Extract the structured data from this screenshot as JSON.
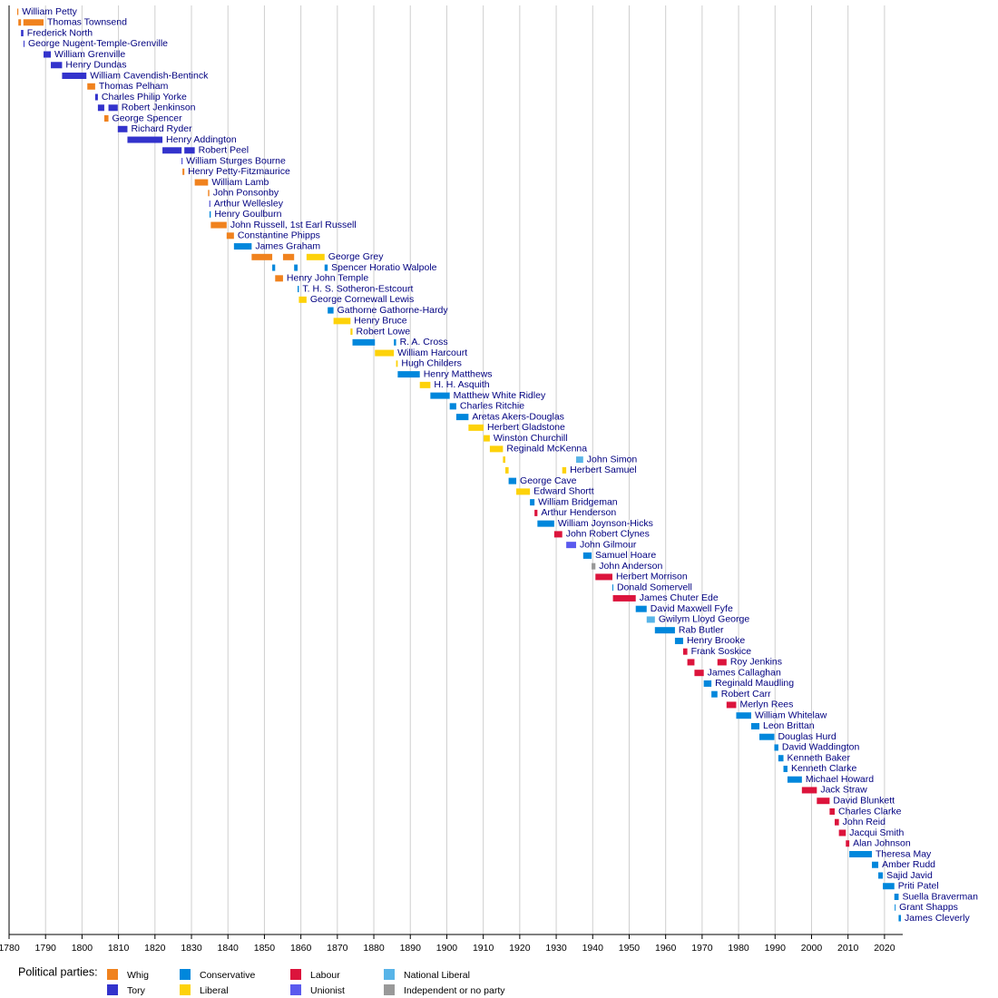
{
  "chart_data": {
    "type": "timeline",
    "xlim": [
      1780,
      2025
    ],
    "xticks": [
      1780,
      1790,
      1800,
      1810,
      1820,
      1830,
      1840,
      1850,
      1860,
      1870,
      1880,
      1890,
      1900,
      1910,
      1920,
      1930,
      1940,
      1950,
      1960,
      1970,
      1980,
      1990,
      2000,
      2010,
      2020
    ],
    "grid": true,
    "legend_title": "Political parties:",
    "parties": [
      {
        "name": "Whig",
        "color": "#f0821e"
      },
      {
        "name": "Tory",
        "color": "#3333cc"
      },
      {
        "name": "Conservative",
        "color": "#0087dc"
      },
      {
        "name": "Liberal",
        "color": "#fdd20a"
      },
      {
        "name": "Labour",
        "color": "#dc143c"
      },
      {
        "name": "Unionist",
        "color": "#5a5aee"
      },
      {
        "name": "National Liberal",
        "color": "#58b4e8"
      },
      {
        "name": "Independent or no party",
        "color": "#999999"
      }
    ],
    "rows": [
      {
        "name": "William Petty",
        "terms": [
          {
            "start": 1782.23,
            "end": 1782.54,
            "party": 0
          }
        ]
      },
      {
        "name": "Thomas Townsend",
        "terms": [
          {
            "start": 1782.54,
            "end": 1783.28,
            "party": 0
          },
          {
            "start": 1783.92,
            "end": 1789.45,
            "party": 0
          }
        ]
      },
      {
        "name": "Frederick North",
        "terms": [
          {
            "start": 1783.28,
            "end": 1783.92,
            "party": 1
          }
        ]
      },
      {
        "name": "George Nugent-Temple-Grenville",
        "terms": [
          {
            "start": 1783.97,
            "end": 1783.99,
            "party": 1
          }
        ]
      },
      {
        "name": "William Grenville",
        "terms": [
          {
            "start": 1789.45,
            "end": 1791.45,
            "party": 1
          }
        ]
      },
      {
        "name": "Henry Dundas",
        "terms": [
          {
            "start": 1791.45,
            "end": 1794.53,
            "party": 1
          }
        ]
      },
      {
        "name": "William Cavendish-Bentinck",
        "terms": [
          {
            "start": 1794.53,
            "end": 1801.2,
            "party": 1
          }
        ]
      },
      {
        "name": "Thomas Pelham",
        "terms": [
          {
            "start": 1801.45,
            "end": 1803.6,
            "party": 0
          }
        ]
      },
      {
        "name": "Charles Philip Yorke",
        "terms": [
          {
            "start": 1803.6,
            "end": 1804.35,
            "party": 1
          }
        ]
      },
      {
        "name": "Robert Jenkinson",
        "terms": [
          {
            "start": 1804.35,
            "end": 1806.1,
            "party": 1
          },
          {
            "start": 1807.25,
            "end": 1809.8,
            "party": 1
          }
        ]
      },
      {
        "name": "George Spencer",
        "terms": [
          {
            "start": 1806.1,
            "end": 1807.25,
            "party": 0
          }
        ]
      },
      {
        "name": "Richard Ryder",
        "terms": [
          {
            "start": 1809.8,
            "end": 1812.45,
            "party": 1
          }
        ]
      },
      {
        "name": "Henry Addington",
        "terms": [
          {
            "start": 1812.45,
            "end": 1822.05,
            "party": 1
          }
        ]
      },
      {
        "name": "Robert Peel",
        "terms": [
          {
            "start": 1822.05,
            "end": 1827.3,
            "party": 1
          },
          {
            "start": 1828.05,
            "end": 1830.9,
            "party": 1
          }
        ]
      },
      {
        "name": "William Sturges Bourne",
        "terms": [
          {
            "start": 1827.3,
            "end": 1827.55,
            "party": 1
          }
        ]
      },
      {
        "name": "Henry Petty-Fitzmaurice",
        "terms": [
          {
            "start": 1827.55,
            "end": 1828.05,
            "party": 0
          }
        ]
      },
      {
        "name": "William Lamb",
        "terms": [
          {
            "start": 1830.9,
            "end": 1834.55,
            "party": 0
          }
        ]
      },
      {
        "name": "John Ponsonby",
        "terms": [
          {
            "start": 1834.55,
            "end": 1834.9,
            "party": 0
          }
        ]
      },
      {
        "name": "Arthur Wellesley",
        "terms": [
          {
            "start": 1834.9,
            "end": 1834.95,
            "party": 1
          }
        ]
      },
      {
        "name": "Henry Goulburn",
        "terms": [
          {
            "start": 1834.95,
            "end": 1835.3,
            "party": 2
          }
        ]
      },
      {
        "name": "John Russell, 1st Earl Russell",
        "terms": [
          {
            "start": 1835.3,
            "end": 1839.65,
            "party": 0
          }
        ]
      },
      {
        "name": "Constantine Phipps",
        "terms": [
          {
            "start": 1839.65,
            "end": 1841.65,
            "party": 0
          }
        ]
      },
      {
        "name": "James Graham",
        "terms": [
          {
            "start": 1841.65,
            "end": 1846.5,
            "party": 2
          }
        ]
      },
      {
        "name": "George Grey",
        "terms": [
          {
            "start": 1846.5,
            "end": 1852.15,
            "party": 0
          },
          {
            "start": 1855.1,
            "end": 1858.15,
            "party": 0
          },
          {
            "start": 1861.55,
            "end": 1866.5,
            "party": 3
          }
        ]
      },
      {
        "name": "Spencer Horatio Walpole",
        "terms": [
          {
            "start": 1852.15,
            "end": 1852.95,
            "party": 2
          },
          {
            "start": 1858.15,
            "end": 1859.1,
            "party": 2
          },
          {
            "start": 1866.5,
            "end": 1867.35,
            "party": 2
          }
        ]
      },
      {
        "name": "Henry John Temple",
        "terms": [
          {
            "start": 1852.95,
            "end": 1855.1,
            "party": 0
          }
        ]
      },
      {
        "name": "T. H. S. Sotheron-Estcourt",
        "terms": [
          {
            "start": 1859.1,
            "end": 1859.45,
            "party": 2
          }
        ]
      },
      {
        "name": "George Cornewall Lewis",
        "terms": [
          {
            "start": 1859.45,
            "end": 1861.55,
            "party": 3
          }
        ]
      },
      {
        "name": "Gathorne Gathorne-Hardy",
        "terms": [
          {
            "start": 1867.35,
            "end": 1868.95,
            "party": 2
          }
        ]
      },
      {
        "name": "Henry Bruce",
        "terms": [
          {
            "start": 1868.95,
            "end": 1873.6,
            "party": 3
          }
        ]
      },
      {
        "name": "Robert Lowe",
        "terms": [
          {
            "start": 1873.6,
            "end": 1874.15,
            "party": 3
          }
        ]
      },
      {
        "name": "R. A. Cross",
        "terms": [
          {
            "start": 1874.15,
            "end": 1880.3,
            "party": 2
          },
          {
            "start": 1885.5,
            "end": 1886.1,
            "party": 2
          }
        ]
      },
      {
        "name": "William Harcourt",
        "terms": [
          {
            "start": 1880.3,
            "end": 1885.5,
            "party": 3
          }
        ]
      },
      {
        "name": "Hugh Childers",
        "terms": [
          {
            "start": 1886.1,
            "end": 1886.55,
            "party": 3
          }
        ]
      },
      {
        "name": "Henry Matthews",
        "terms": [
          {
            "start": 1886.55,
            "end": 1892.6,
            "party": 2
          }
        ]
      },
      {
        "name": "H. H. Asquith",
        "terms": [
          {
            "start": 1892.6,
            "end": 1895.5,
            "party": 3
          }
        ]
      },
      {
        "name": "Matthew White Ridley",
        "terms": [
          {
            "start": 1895.5,
            "end": 1900.8,
            "party": 2
          }
        ]
      },
      {
        "name": "Charles Ritchie",
        "terms": [
          {
            "start": 1900.8,
            "end": 1902.6,
            "party": 2
          }
        ]
      },
      {
        "name": "Aretas Akers-Douglas",
        "terms": [
          {
            "start": 1902.6,
            "end": 1905.95,
            "party": 2
          }
        ]
      },
      {
        "name": "Herbert Gladstone",
        "terms": [
          {
            "start": 1905.95,
            "end": 1910.1,
            "party": 3
          }
        ]
      },
      {
        "name": "Winston Churchill",
        "terms": [
          {
            "start": 1910.1,
            "end": 1911.8,
            "party": 3
          }
        ]
      },
      {
        "name": "Reginald McKenna",
        "terms": [
          {
            "start": 1911.8,
            "end": 1915.4,
            "party": 3
          }
        ]
      },
      {
        "name": "John Simon",
        "terms": [
          {
            "start": 1915.4,
            "end": 1916.05,
            "party": 3
          },
          {
            "start": 1935.45,
            "end": 1937.4,
            "party": 6
          }
        ]
      },
      {
        "name": "Herbert Samuel",
        "terms": [
          {
            "start": 1916.05,
            "end": 1916.95,
            "party": 3
          },
          {
            "start": 1931.65,
            "end": 1932.75,
            "party": 3
          }
        ]
      },
      {
        "name": "George Cave",
        "terms": [
          {
            "start": 1916.95,
            "end": 1919.05,
            "party": 2
          }
        ]
      },
      {
        "name": "Edward Shortt",
        "terms": [
          {
            "start": 1919.05,
            "end": 1922.8,
            "party": 3
          }
        ]
      },
      {
        "name": "William Bridgeman",
        "terms": [
          {
            "start": 1922.8,
            "end": 1924.05,
            "party": 2
          }
        ]
      },
      {
        "name": "Arthur Henderson",
        "terms": [
          {
            "start": 1924.05,
            "end": 1924.85,
            "party": 4
          }
        ]
      },
      {
        "name": "William Joynson-Hicks",
        "terms": [
          {
            "start": 1924.85,
            "end": 1929.45,
            "party": 2
          }
        ]
      },
      {
        "name": "John Robert Clynes",
        "terms": [
          {
            "start": 1929.45,
            "end": 1931.65,
            "party": 4
          }
        ]
      },
      {
        "name": "John Gilmour",
        "terms": [
          {
            "start": 1932.75,
            "end": 1935.45,
            "party": 5
          }
        ]
      },
      {
        "name": "Samuel Hoare",
        "terms": [
          {
            "start": 1937.4,
            "end": 1939.7,
            "party": 2
          }
        ]
      },
      {
        "name": "John Anderson",
        "terms": [
          {
            "start": 1939.7,
            "end": 1940.75,
            "party": 7
          }
        ]
      },
      {
        "name": "Herbert Morrison",
        "terms": [
          {
            "start": 1940.75,
            "end": 1945.4,
            "party": 4
          }
        ]
      },
      {
        "name": "Donald Somervell",
        "terms": [
          {
            "start": 1945.4,
            "end": 1945.55,
            "party": 2
          }
        ]
      },
      {
        "name": "James Chuter Ede",
        "terms": [
          {
            "start": 1945.55,
            "end": 1951.8,
            "party": 4
          }
        ]
      },
      {
        "name": "David Maxwell Fyfe",
        "terms": [
          {
            "start": 1951.8,
            "end": 1954.8,
            "party": 2
          }
        ]
      },
      {
        "name": "Gwilym Lloyd George",
        "terms": [
          {
            "start": 1954.8,
            "end": 1957.05,
            "party": 6
          }
        ]
      },
      {
        "name": "Rab Butler",
        "terms": [
          {
            "start": 1957.05,
            "end": 1962.55,
            "party": 2
          }
        ]
      },
      {
        "name": "Henry Brooke",
        "terms": [
          {
            "start": 1962.55,
            "end": 1964.8,
            "party": 2
          }
        ]
      },
      {
        "name": "Frank Soskice",
        "terms": [
          {
            "start": 1964.8,
            "end": 1965.95,
            "party": 4
          }
        ]
      },
      {
        "name": "Roy Jenkins",
        "terms": [
          {
            "start": 1965.95,
            "end": 1967.9,
            "party": 4
          },
          {
            "start": 1974.2,
            "end": 1976.7,
            "party": 4
          }
        ]
      },
      {
        "name": "James Callaghan",
        "terms": [
          {
            "start": 1967.9,
            "end": 1970.45,
            "party": 4
          }
        ]
      },
      {
        "name": "Reginald Maudling",
        "terms": [
          {
            "start": 1970.45,
            "end": 1972.55,
            "party": 2
          }
        ]
      },
      {
        "name": "Robert Carr",
        "terms": [
          {
            "start": 1972.55,
            "end": 1974.2,
            "party": 2
          }
        ]
      },
      {
        "name": "Merlyn Rees",
        "terms": [
          {
            "start": 1976.7,
            "end": 1979.35,
            "party": 4
          }
        ]
      },
      {
        "name": "William Whitelaw",
        "terms": [
          {
            "start": 1979.35,
            "end": 1983.45,
            "party": 2
          }
        ]
      },
      {
        "name": "Leon Brittan",
        "terms": [
          {
            "start": 1983.45,
            "end": 1985.7,
            "party": 2
          }
        ]
      },
      {
        "name": "Douglas Hurd",
        "terms": [
          {
            "start": 1985.7,
            "end": 1989.8,
            "party": 2
          }
        ]
      },
      {
        "name": "David Waddington",
        "terms": [
          {
            "start": 1989.8,
            "end": 1990.9,
            "party": 2
          }
        ]
      },
      {
        "name": "Kenneth Baker",
        "terms": [
          {
            "start": 1990.9,
            "end": 1992.3,
            "party": 2
          }
        ]
      },
      {
        "name": "Kenneth Clarke",
        "terms": [
          {
            "start": 1992.3,
            "end": 1993.4,
            "party": 2
          }
        ]
      },
      {
        "name": "Michael Howard",
        "terms": [
          {
            "start": 1993.4,
            "end": 1997.35,
            "party": 2
          }
        ]
      },
      {
        "name": "Jack Straw",
        "terms": [
          {
            "start": 1997.35,
            "end": 2001.45,
            "party": 4
          }
        ]
      },
      {
        "name": "David Blunkett",
        "terms": [
          {
            "start": 2001.45,
            "end": 2004.95,
            "party": 4
          }
        ]
      },
      {
        "name": "Charles Clarke",
        "terms": [
          {
            "start": 2004.95,
            "end": 2006.35,
            "party": 4
          }
        ]
      },
      {
        "name": "John Reid",
        "terms": [
          {
            "start": 2006.35,
            "end": 2007.5,
            "party": 4
          }
        ]
      },
      {
        "name": "Jacqui Smith",
        "terms": [
          {
            "start": 2007.5,
            "end": 2009.4,
            "party": 4
          }
        ]
      },
      {
        "name": "Alan Johnson",
        "terms": [
          {
            "start": 2009.4,
            "end": 2010.35,
            "party": 4
          }
        ]
      },
      {
        "name": "Theresa May",
        "terms": [
          {
            "start": 2010.35,
            "end": 2016.55,
            "party": 2
          }
        ]
      },
      {
        "name": "Amber Rudd",
        "terms": [
          {
            "start": 2016.55,
            "end": 2018.3,
            "party": 2
          }
        ]
      },
      {
        "name": "Sajid Javid",
        "terms": [
          {
            "start": 2018.3,
            "end": 2019.55,
            "party": 2
          }
        ]
      },
      {
        "name": "Priti Patel",
        "terms": [
          {
            "start": 2019.55,
            "end": 2022.7,
            "party": 2
          }
        ]
      },
      {
        "name": "Suella Braverman",
        "terms": [
          {
            "start": 2022.7,
            "end": 2022.8,
            "party": 2
          },
          {
            "start": 2022.82,
            "end": 2023.87,
            "party": 2
          }
        ]
      },
      {
        "name": "Grant Shapps",
        "terms": [
          {
            "start": 2022.8,
            "end": 2022.82,
            "party": 2
          }
        ]
      },
      {
        "name": "James Cleverly",
        "terms": [
          {
            "start": 2023.87,
            "end": 2024.5,
            "party": 2
          }
        ]
      }
    ]
  }
}
